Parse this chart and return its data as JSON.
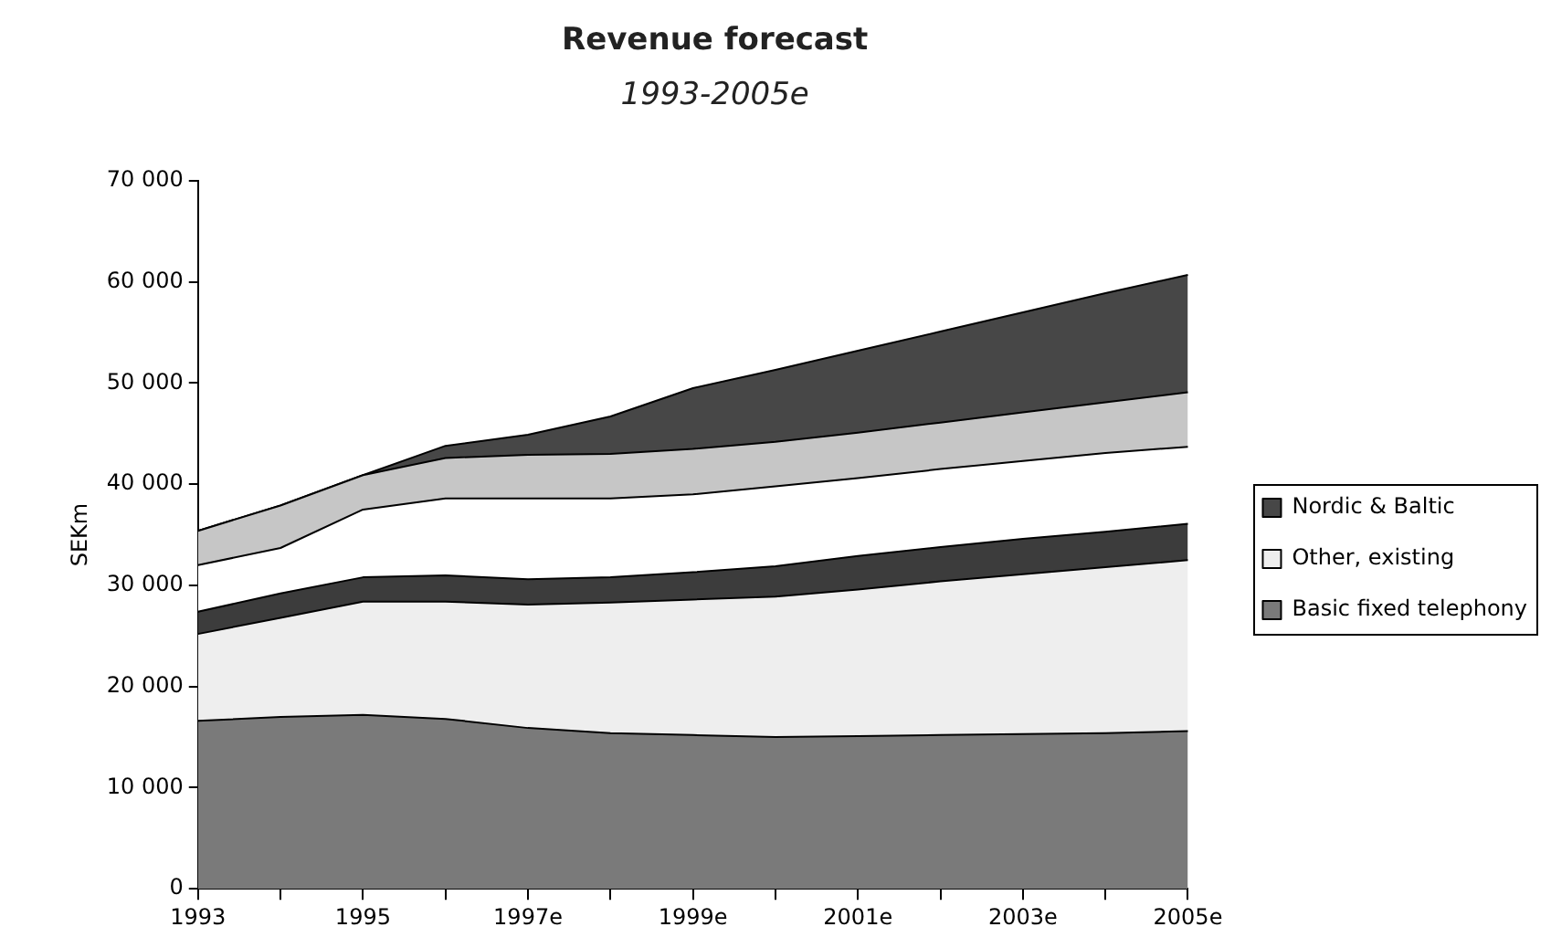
{
  "chart_data": {
    "type": "area",
    "title": "Revenue forecast",
    "subtitle": "1993-2005e",
    "ylabel": "SEKm",
    "categories": [
      "1993",
      null,
      "1995",
      null,
      "1997e",
      null,
      "1999e",
      null,
      "2001e",
      null,
      "2003e",
      null,
      "2005e"
    ],
    "stacked": true,
    "series": [
      {
        "name": "Basic fixed telephony",
        "color": "#7a7a7a",
        "values": [
          16600,
          17000,
          17200,
          16800,
          15900,
          15400,
          15200,
          15000,
          15100,
          15200,
          15300,
          15400,
          15600
        ]
      },
      {
        "name": "Other, existing",
        "color": "#eeeeee",
        "values": [
          8600,
          9800,
          11200,
          11600,
          12200,
          12900,
          13400,
          13900,
          14500,
          15200,
          15800,
          16400,
          16900
        ]
      },
      {
        "color": "#3c3c3c",
        "values": [
          2200,
          2400,
          2400,
          2600,
          2500,
          2500,
          2700,
          3000,
          3300,
          3400,
          3500,
          3500,
          3600
        ]
      },
      {
        "color": "#ffffff",
        "values": [
          4600,
          4500,
          6700,
          7600,
          8000,
          7800,
          7700,
          7900,
          7700,
          7700,
          7700,
          7800,
          7600
        ]
      },
      {
        "color": "#c6c6c6",
        "values": [
          3400,
          4200,
          3400,
          4000,
          4300,
          4400,
          4500,
          4400,
          4500,
          4600,
          4800,
          5000,
          5400
        ]
      },
      {
        "name": "Nordic & Baltic",
        "color": "#474747",
        "values": [
          0,
          0,
          0,
          1200,
          2000,
          3700,
          6000,
          7100,
          8100,
          9000,
          9900,
          10800,
          11600
        ]
      }
    ],
    "ylim": [
      0,
      70000
    ],
    "yticks": [
      0,
      {
        "value": 10000,
        "label": "10 000"
      },
      {
        "value": 20000,
        "label": "20 000"
      },
      {
        "value": 30000,
        "label": "30 000"
      },
      {
        "value": 40000,
        "label": "40 000"
      },
      {
        "value": 50000,
        "label": "50 000"
      },
      {
        "value": 60000,
        "label": "60 000"
      },
      {
        "value": 70000,
        "label": "70 000"
      }
    ],
    "grid": false,
    "legend": "right"
  }
}
